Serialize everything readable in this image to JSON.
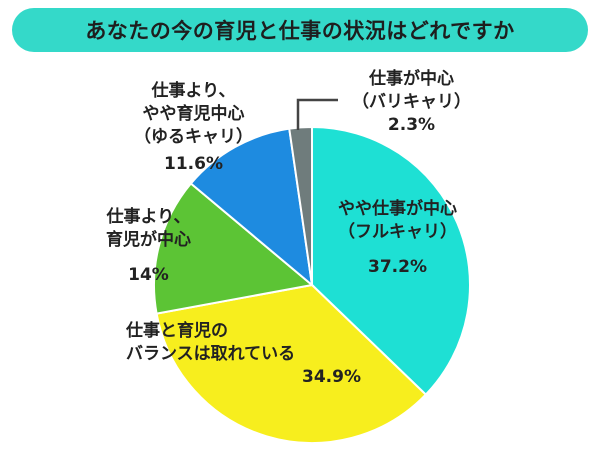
{
  "title": "あなたの今の育児と仕事の状況はどれですか",
  "colors": {
    "title_bg": "#34d9c9",
    "slice_outline": "#ffffff",
    "leader": "#444444"
  },
  "chart_data": {
    "type": "pie",
    "title": "あなたの今の育児と仕事の状況はどれですか",
    "start": "12 o'clock",
    "direction": "clockwise",
    "slices": [
      {
        "label_lines": [
          "やや仕事が中心",
          "（フルキャリ）"
        ],
        "value": 37.2,
        "value_label": "37.2%",
        "color": "#1ee0d4"
      },
      {
        "label_lines": [
          "仕事と育児の",
          "バランスは取れている"
        ],
        "value": 34.9,
        "value_label": "34.9%",
        "color": "#f7ee1e"
      },
      {
        "label_lines": [
          "仕事より、",
          "育児が中心"
        ],
        "value": 14.0,
        "value_label": "14%",
        "color": "#5cc435"
      },
      {
        "label_lines": [
          "仕事より、",
          "やや育児中心",
          "（ゆるキャリ）"
        ],
        "value": 11.6,
        "value_label": "11.6%",
        "color": "#1e8be0"
      },
      {
        "label_lines": [
          "仕事が中心",
          "（バリキャリ）"
        ],
        "value": 2.3,
        "value_label": "2.3%",
        "color": "#6f7c7c"
      }
    ]
  }
}
